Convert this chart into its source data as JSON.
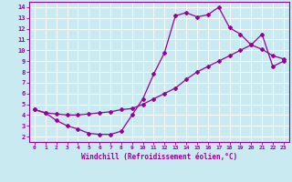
{
  "xlabel": "Windchill (Refroidissement éolien,°C)",
  "bg_color": "#c8eaf0",
  "line_color": "#990099",
  "grid_color": "#ffffff",
  "xlim": [
    -0.5,
    23.5
  ],
  "ylim": [
    1.5,
    14.5
  ],
  "xticks": [
    0,
    1,
    2,
    3,
    4,
    5,
    6,
    7,
    8,
    9,
    10,
    11,
    12,
    13,
    14,
    15,
    16,
    17,
    18,
    19,
    20,
    21,
    22,
    23
  ],
  "yticks": [
    2,
    3,
    4,
    5,
    6,
    7,
    8,
    9,
    10,
    11,
    12,
    13,
    14
  ],
  "line1_x": [
    0,
    1,
    2,
    3,
    4,
    5,
    6,
    7,
    8,
    9,
    10,
    11,
    12,
    13,
    14,
    15,
    16,
    17,
    18,
    19,
    20,
    21,
    22,
    23
  ],
  "line1_y": [
    4.5,
    4.2,
    3.5,
    3.0,
    2.7,
    2.3,
    2.2,
    2.2,
    2.5,
    4.0,
    5.5,
    7.8,
    9.8,
    13.2,
    13.5,
    13.1,
    13.3,
    14.0,
    12.1,
    11.5,
    10.5,
    10.1,
    9.5,
    9.2
  ],
  "line2_x": [
    0,
    1,
    2,
    3,
    4,
    5,
    6,
    7,
    8,
    9,
    10,
    11,
    12,
    13,
    14,
    15,
    16,
    17,
    18,
    19,
    20,
    21,
    22,
    23
  ],
  "line2_y": [
    4.5,
    4.2,
    4.1,
    4.0,
    4.0,
    4.1,
    4.2,
    4.3,
    4.5,
    4.6,
    5.0,
    5.5,
    6.0,
    6.5,
    7.3,
    8.0,
    8.5,
    9.0,
    9.5,
    10.0,
    10.5,
    11.5,
    8.5,
    9.0
  ]
}
